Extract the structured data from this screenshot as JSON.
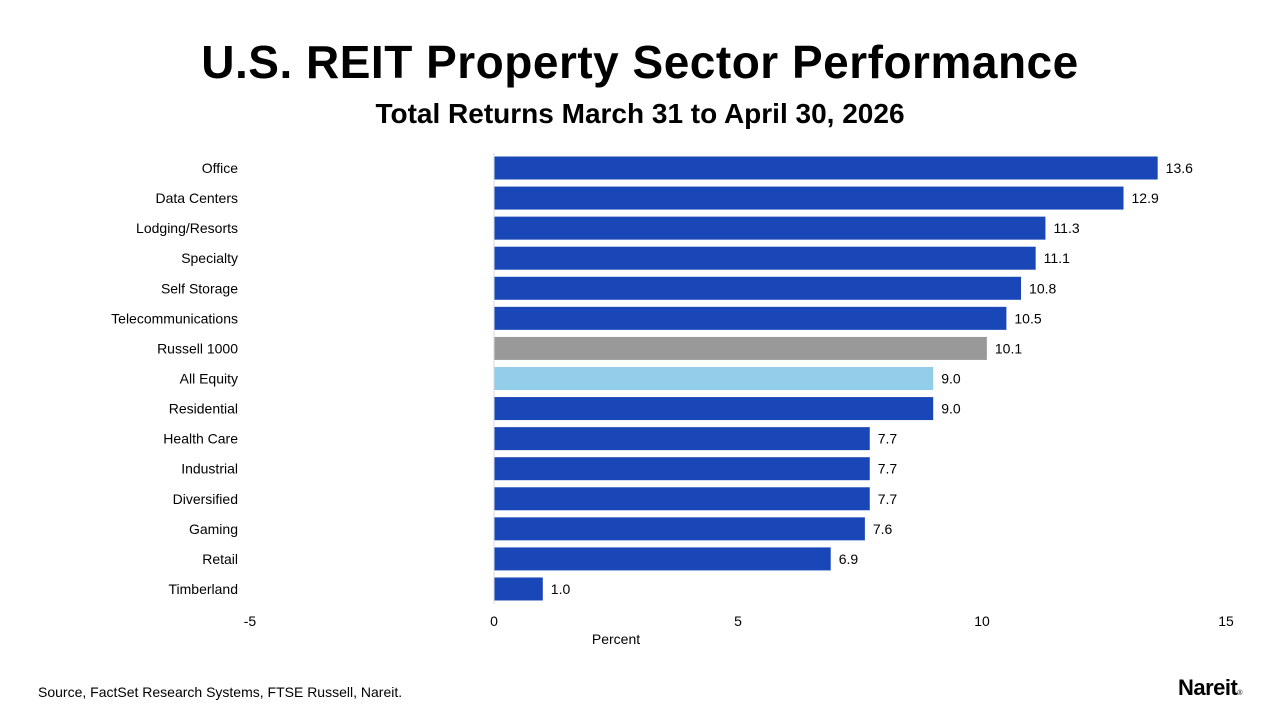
{
  "header": {
    "title": "U.S. REIT Property Sector Performance",
    "subtitle": "Total Returns March 31 to April 30, 2026"
  },
  "footer": {
    "source": "Source, FactSet Research Systems, FTSE Russell, Nareit.",
    "logo": "Nareit"
  },
  "colors": {
    "default_bar": "#1a47b8",
    "benchmark_bar": "#999999",
    "all_equity_bar": "#92cdea",
    "axis_line": "#d9d9d9"
  },
  "chart_data": {
    "type": "bar",
    "orientation": "horizontal",
    "title": "U.S. REIT Property Sector Performance",
    "subtitle": "Total Returns March 31 to April 30, 2026",
    "xlabel": "Percent",
    "ylabel": "",
    "xlim": [
      -5,
      15
    ],
    "xticks": [
      -5,
      0,
      5,
      10,
      15
    ],
    "grid": false,
    "legend": "none",
    "categories": [
      "Office",
      "Data Centers",
      "Lodging/Resorts",
      "Specialty",
      "Self Storage",
      "Telecommunications",
      "Russell 1000",
      "All Equity",
      "Residential",
      "Health Care",
      "Industrial",
      "Diversified",
      "Gaming",
      "Retail",
      "Timberland"
    ],
    "values": [
      13.6,
      12.9,
      11.3,
      11.1,
      10.8,
      10.5,
      10.1,
      9.0,
      9.0,
      7.7,
      7.7,
      7.7,
      7.6,
      6.9,
      1.0
    ],
    "value_labels": [
      "13.6",
      "12.9",
      "11.3",
      "11.1",
      "10.8",
      "10.5",
      "10.1",
      "9.0",
      "9.0",
      "7.7",
      "7.7",
      "7.7",
      "7.6",
      "6.9",
      "1.0"
    ],
    "bar_colors": [
      "#1a47b8",
      "#1a47b8",
      "#1a47b8",
      "#1a47b8",
      "#1a47b8",
      "#1a47b8",
      "#999999",
      "#92cdea",
      "#1a47b8",
      "#1a47b8",
      "#1a47b8",
      "#1a47b8",
      "#1a47b8",
      "#1a47b8",
      "#1a47b8"
    ]
  }
}
